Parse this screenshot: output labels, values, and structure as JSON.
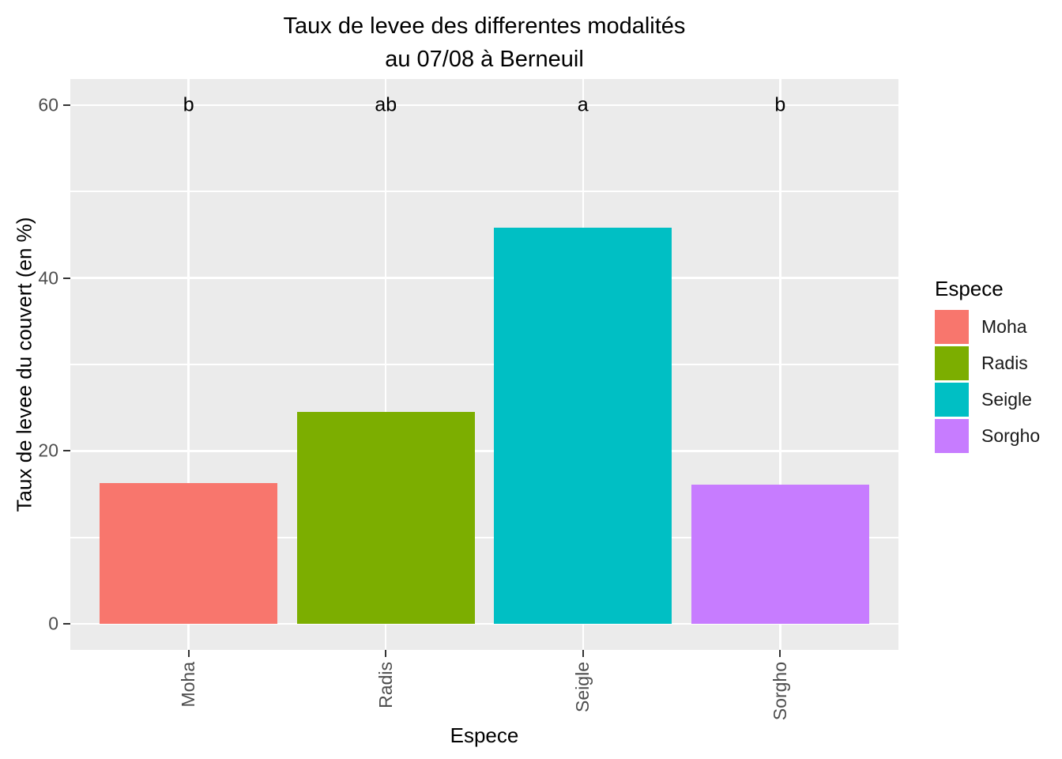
{
  "figure": {
    "title_line1": "Taux de levee des differentes modalités",
    "title_line2": "au 07/08 à Berneuil"
  },
  "chart_data": {
    "type": "bar",
    "title": "Taux de levee des differentes modalités\nau 07/08 à Berneuil",
    "xlabel": "Espece",
    "ylabel": "Taux de levee du couvert (en %)",
    "categories": [
      "Moha",
      "Radis",
      "Seigle",
      "Sorgho"
    ],
    "values": [
      16.3,
      24.5,
      45.8,
      16.1
    ],
    "bar_colors": [
      "#F8766D",
      "#7CAE00",
      "#00BFC4",
      "#C77CFF"
    ],
    "annotations": [
      {
        "category": "Moha",
        "label": "b",
        "y": 60
      },
      {
        "category": "Radis",
        "label": "ab",
        "y": 60
      },
      {
        "category": "Seigle",
        "label": "a",
        "y": 60
      },
      {
        "category": "Sorgho",
        "label": "b",
        "y": 60
      }
    ],
    "ylim": [
      0,
      60
    ],
    "yticks": [
      0,
      20,
      40,
      60
    ],
    "ytick_labels": [
      "0",
      "20",
      "40",
      "60"
    ],
    "yticks_minor": [
      10,
      30,
      50
    ],
    "grid": true,
    "legend": {
      "title": "Espece",
      "position": "right",
      "entries": [
        {
          "label": "Moha",
          "color": "#F8766D"
        },
        {
          "label": "Radis",
          "color": "#7CAE00"
        },
        {
          "label": "Seigle",
          "color": "#00BFC4"
        },
        {
          "label": "Sorgho",
          "color": "#C77CFF"
        }
      ]
    }
  },
  "colors": {
    "panel_bg": "#EBEBEB",
    "grid": "#FFFFFF",
    "tick_text": "#4D4D4D",
    "axis_text": "#000000",
    "tick_mark": "#333333",
    "background": "#FFFFFF"
  }
}
